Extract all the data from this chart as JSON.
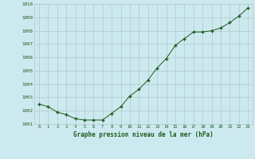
{
  "x": [
    0,
    1,
    2,
    3,
    4,
    5,
    6,
    7,
    8,
    9,
    10,
    11,
    12,
    13,
    14,
    15,
    16,
    17,
    18,
    19,
    20,
    21,
    22,
    23
  ],
  "y": [
    1002.5,
    1002.3,
    1001.9,
    1001.7,
    1001.4,
    1001.3,
    1001.3,
    1001.3,
    1001.8,
    1002.3,
    1003.1,
    1003.6,
    1004.3,
    1005.2,
    1005.9,
    1006.9,
    1007.4,
    1007.9,
    1007.9,
    1008.0,
    1008.2,
    1008.6,
    1009.1,
    1009.7
  ],
  "ylim": [
    1001.0,
    1010.0
  ],
  "yticks": [
    1001,
    1002,
    1003,
    1004,
    1005,
    1006,
    1007,
    1008,
    1009,
    1010
  ],
  "xticks": [
    0,
    1,
    2,
    3,
    4,
    5,
    6,
    7,
    8,
    9,
    10,
    11,
    12,
    13,
    14,
    15,
    16,
    17,
    18,
    19,
    20,
    21,
    22,
    23
  ],
  "line_color": "#1a5c1a",
  "marker_color": "#1a5c1a",
  "bg_color": "#cde9f0",
  "grid_color": "#b0c8c8",
  "xlabel": "Graphe pression niveau de la mer (hPa)",
  "xlabel_color": "#1a5c1a",
  "tick_label_color": "#1a5c1a"
}
